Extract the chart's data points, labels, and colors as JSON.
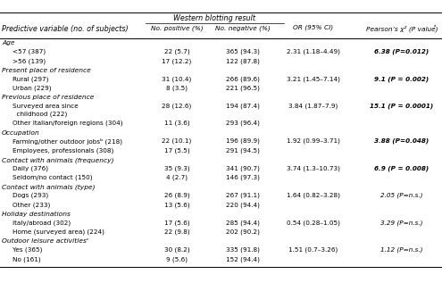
{
  "wb_header": "Western blotting result",
  "col0_header": "Predictive variable (no. of subjects)",
  "col1_header": "No. positive (%)",
  "col2_header": "No. negative (%)",
  "col3_header": "OR (95% CI)",
  "col4_header": "Pearson’s χ² (P value)ᵃ",
  "sections": [
    {
      "section_header": "Age",
      "rows": [
        {
          "label": "<57 (387)",
          "pos": "22 (5.7)",
          "neg": "365 (94.3)",
          "or": "2.31 (1.18–4.49)",
          "pearson": "6.38 (P=0.012)",
          "pearson_bold": true
        },
        {
          "label": ">56 (139)",
          "pos": "17 (12.2)",
          "neg": "122 (87.8)",
          "or": "",
          "pearson": ""
        }
      ]
    },
    {
      "section_header": "Present place of residence",
      "rows": [
        {
          "label": "Rural (297)",
          "pos": "31 (10.4)",
          "neg": "266 (89.6)",
          "or": "3.21 (1.45–7.14)",
          "pearson": "9.1 (P = 0.002)",
          "pearson_bold": true
        },
        {
          "label": "Urban (229)",
          "pos": "8 (3.5)",
          "neg": "221 (96.5)",
          "or": "",
          "pearson": ""
        }
      ]
    },
    {
      "section_header": "Previous place of residence",
      "rows": [
        {
          "label": "Surveyed area since",
          "label2": "  childhood (222)",
          "pos": "28 (12.6)",
          "neg": "194 (87.4)",
          "or": "3.84 (1.87–7.9)",
          "pearson": "15.1 (P = 0.0001)",
          "pearson_bold": true,
          "two_line": true
        },
        {
          "label": "Other Italian/foreign regions (304)",
          "pos": "11 (3.6)",
          "neg": "293 (96.4)",
          "or": "",
          "pearson": ""
        }
      ]
    },
    {
      "section_header": "Occupation",
      "rows": [
        {
          "label": "Farming/other outdoor jobsᵇ (218)",
          "pos": "22 (10.1)",
          "neg": "196 (89.9)",
          "or": "1.92 (0.99–3.71)",
          "pearson": "3.88 (P=0.048)",
          "pearson_bold": true
        },
        {
          "label": "Employees, professionals (308)",
          "pos": "17 (5.5)",
          "neg": "291 (94.5)",
          "or": "",
          "pearson": ""
        }
      ]
    },
    {
      "section_header": "Contact with animals (frequency)",
      "rows": [
        {
          "label": "Daily (376)",
          "pos": "35 (9.3)",
          "neg": "341 (90.7)",
          "or": "3.74 (1.3–10.73)",
          "pearson": "6.9 (P = 0.008)",
          "pearson_bold": true
        },
        {
          "label": "Seldom/no contact (150)",
          "pos": "4 (2.7)",
          "neg": "146 (97.3)",
          "or": "",
          "pearson": ""
        }
      ]
    },
    {
      "section_header": "Contact with animals (type)",
      "rows": [
        {
          "label": "Dogs (293)",
          "pos": "26 (8.9)",
          "neg": "267 (91.1)",
          "or": "1.64 (0.82–3.28)",
          "pearson": "2.05 (P=n.s.)",
          "pearson_bold": false
        },
        {
          "label": "Other (233)",
          "pos": "13 (5.6)",
          "neg": "220 (94.4)",
          "or": "",
          "pearson": ""
        }
      ]
    },
    {
      "section_header": "Holiday destinations",
      "rows": [
        {
          "label": "Italy/abroad (302)",
          "pos": "17 (5.6)",
          "neg": "285 (94.4)",
          "or": "0.54 (0.28–1.05)",
          "pearson": "3.29 (P=n.s.)",
          "pearson_bold": false
        },
        {
          "label": "Home (surveyed area) (224)",
          "pos": "22 (9.8)",
          "neg": "202 (90.2)",
          "or": "",
          "pearson": ""
        }
      ]
    },
    {
      "section_header": "Outdoor leisure activitiesᶜ",
      "rows": [
        {
          "label": "Yes (365)",
          "pos": "30 (8.2)",
          "neg": "335 (91.8)",
          "or": "1.51 (0.7–3.26)",
          "pearson": "1.12 (P=n.s.)",
          "pearson_bold": false
        },
        {
          "label": "No (161)",
          "pos": "9 (5.6)",
          "neg": "152 (94.4)",
          "or": "",
          "pearson": ""
        }
      ]
    }
  ],
  "bg_color": "#ffffff",
  "text_color": "#000000"
}
